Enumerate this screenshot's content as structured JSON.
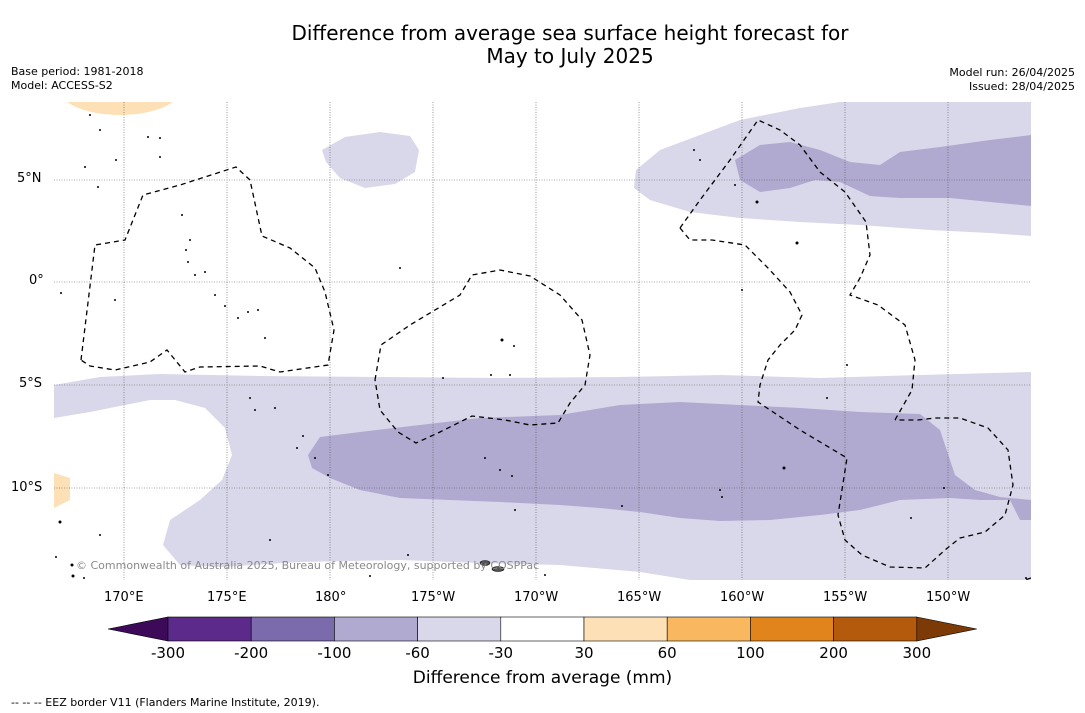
{
  "title": {
    "line1": "Difference from average sea surface height forecast for",
    "line2": "May to July 2025"
  },
  "meta_left": {
    "base_period": "Base period: 1981-2018",
    "model": "Model: ACCESS-S2"
  },
  "meta_right": {
    "model_run": "Model run: 26/04/2025",
    "issued": "Issued: 28/04/2025"
  },
  "map": {
    "lat_labels": [
      "5°N",
      "0°",
      "5°S",
      "10°S"
    ],
    "lon_labels": [
      "170°E",
      "175°E",
      "180°",
      "175°W",
      "170°W",
      "165°W",
      "160°W",
      "155°W",
      "150°W"
    ],
    "copyright": "© Commonwealth of Australia 2025, Bureau of Meteorology, supported by COSPPac",
    "colors": {
      "neg_60_30": "#d8d8ea",
      "neg_100_60": "#b0a9d0",
      "pos_30_60": "#fde0b6"
    }
  },
  "colorbar": {
    "ticks": [
      "-300",
      "-200",
      "-100",
      "-60",
      "-30",
      "30",
      "60",
      "100",
      "200",
      "300"
    ],
    "colors": [
      "#3d0a5a",
      "#5b2a8a",
      "#7b6aac",
      "#b0a9d0",
      "#d8d8ea",
      "#ffffff",
      "#fde0b6",
      "#f9b75f",
      "#e1841c",
      "#b35a0d",
      "#7c3a06"
    ],
    "title": "Difference from average (mm)"
  },
  "footnote": "--  --  -- EEZ border V11 (Flanders Marine Institute, 2019)."
}
